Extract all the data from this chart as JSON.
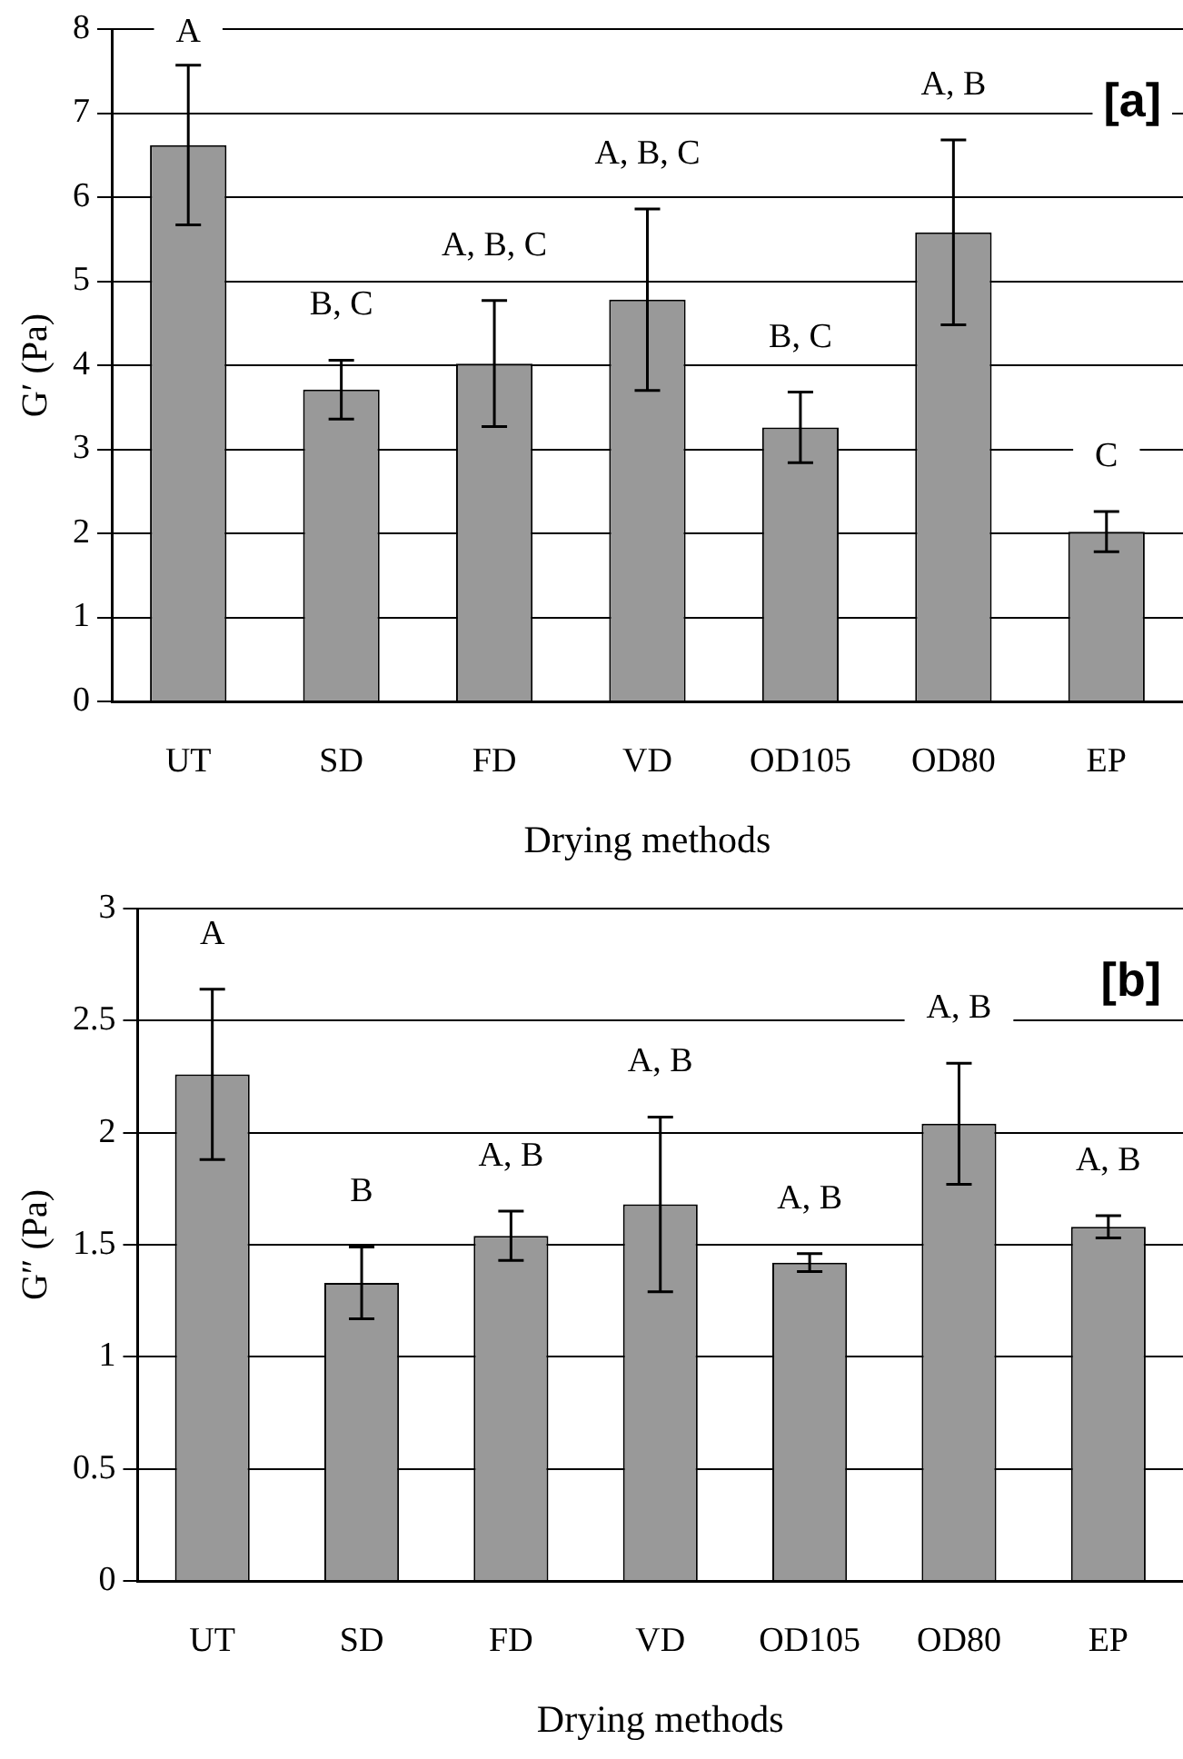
{
  "chart_data": [
    {
      "type": "bar",
      "xlabel": "Drying methods",
      "ylabel": "G′ (Pa)",
      "categories": [
        "UT",
        "SD",
        "FD",
        "VD",
        "OD105",
        "OD80",
        "EP"
      ],
      "values": [
        6.62,
        3.71,
        4.02,
        4.78,
        3.26,
        5.58,
        2.02
      ],
      "errors": [
        0.95,
        0.35,
        0.75,
        1.08,
        0.42,
        1.1,
        0.24
      ],
      "color": "#999999",
      "ylim": [
        0,
        8
      ],
      "yticks": [
        0,
        1,
        2,
        3,
        4,
        5,
        6,
        7,
        8
      ],
      "grid": "y",
      "legend": false,
      "annotations": [
        "[a]",
        "A",
        "B, C",
        "A, B, C",
        "A, B, C",
        "B, C",
        "A, B",
        "C"
      ]
    },
    {
      "type": "bar",
      "xlabel": "Drying methods",
      "ylabel": "G″ (Pa)",
      "categories": [
        "UT",
        "SD",
        "FD",
        "VD",
        "OD105",
        "OD80",
        "EP"
      ],
      "values": [
        2.26,
        1.33,
        1.54,
        1.68,
        1.42,
        2.04,
        1.58
      ],
      "errors": [
        0.38,
        0.16,
        0.11,
        0.39,
        0.04,
        0.27,
        0.05
      ],
      "color": "#999999",
      "ylim": [
        0,
        3
      ],
      "yticks": [
        0,
        0.5,
        1,
        1.5,
        2,
        2.5,
        3
      ],
      "grid": "y",
      "legend": false,
      "annotations": [
        "[b]",
        "A",
        "B",
        "A, B",
        "A, B",
        "A, B",
        "A, B",
        "A, B"
      ]
    }
  ]
}
